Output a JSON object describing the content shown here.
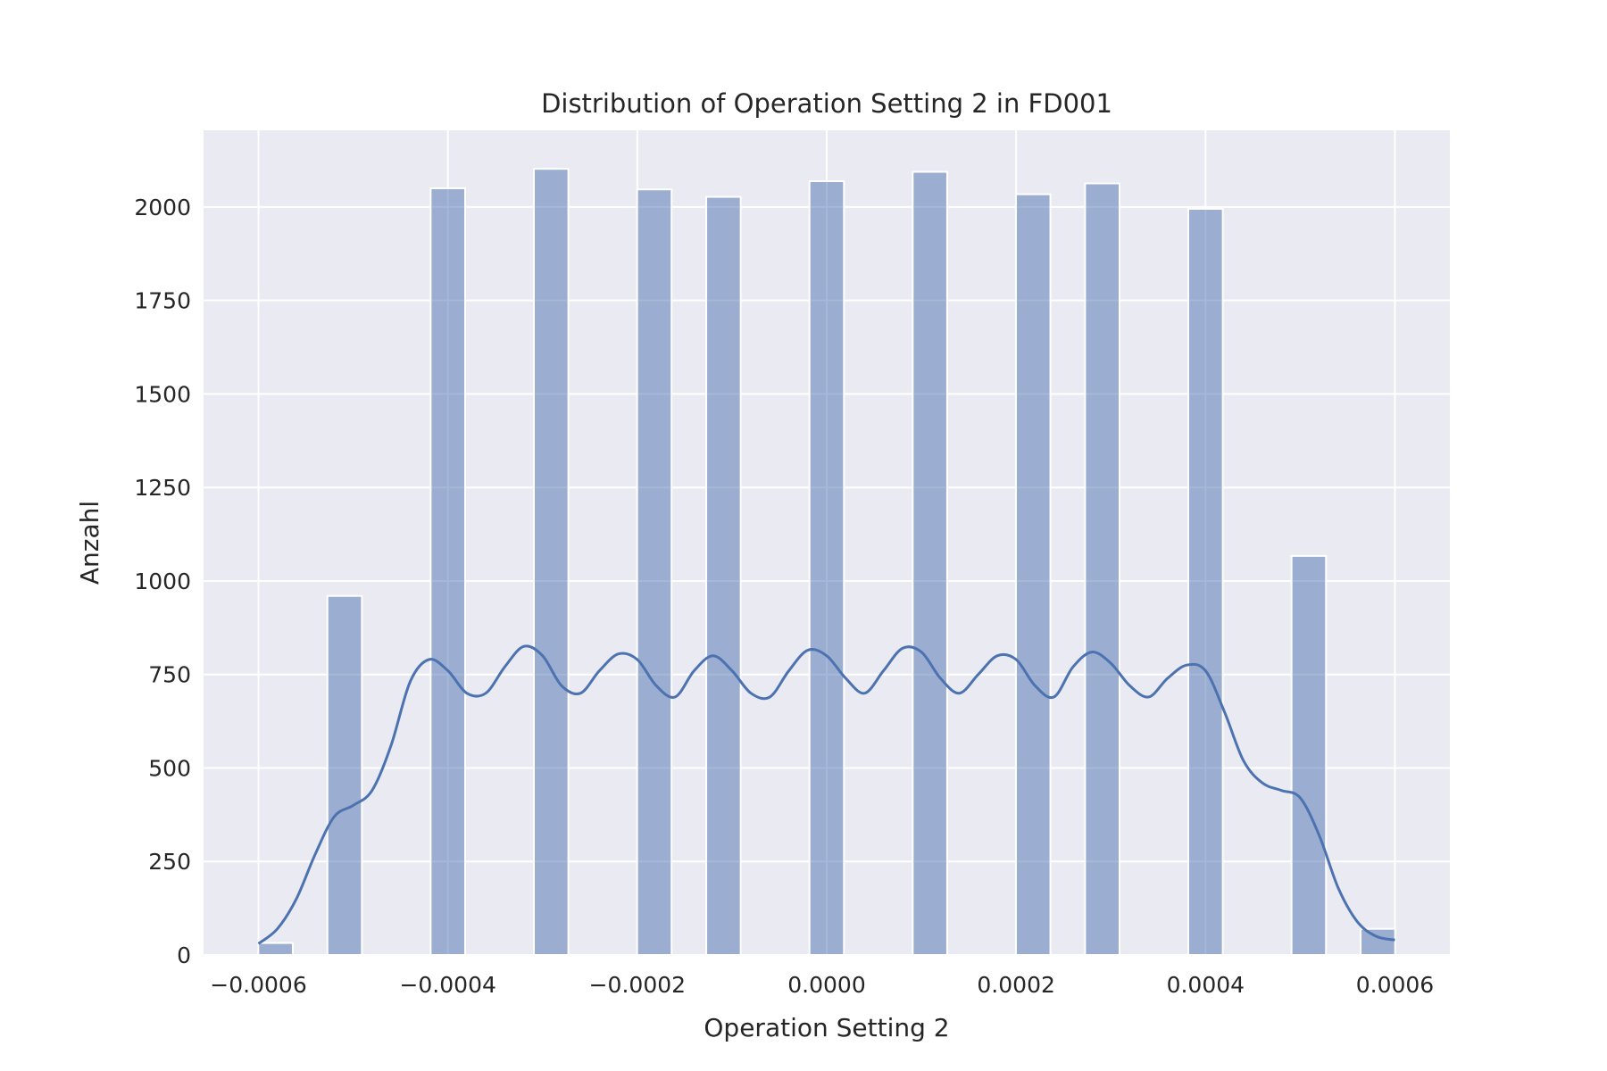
{
  "chart_data": {
    "type": "bar",
    "title": "Distribution of Operation Setting 2 in FD001",
    "xlabel": "Operation Setting 2",
    "ylabel": "Anzahl",
    "xlim": [
      -0.000658,
      0.000658
    ],
    "ylim": [
      0,
      2205
    ],
    "x_ticks": [
      -0.0006,
      -0.0004,
      -0.0002,
      0.0,
      0.0002,
      0.0004,
      0.0006
    ],
    "x_tick_labels": [
      "−0.0006",
      "−0.0004",
      "−0.0002",
      "0.0000",
      "0.0002",
      "0.0004",
      "0.0006"
    ],
    "y_ticks": [
      0,
      250,
      500,
      750,
      1000,
      1250,
      1500,
      1750,
      2000
    ],
    "y_tick_labels": [
      "0",
      "250",
      "500",
      "750",
      "1000",
      "1250",
      "1500",
      "1750",
      "2000"
    ],
    "grid": true,
    "bin_width": 3.64e-05,
    "bins": [
      {
        "x": -0.000582,
        "count": 32
      },
      {
        "x": -0.000509,
        "count": 960
      },
      {
        "x": -0.0004,
        "count": 2050
      },
      {
        "x": -0.000291,
        "count": 2102
      },
      {
        "x": -0.000182,
        "count": 2047
      },
      {
        "x": -0.000109,
        "count": 2027
      },
      {
        "x": 0.0,
        "count": 2069
      },
      {
        "x": 0.000109,
        "count": 2094
      },
      {
        "x": 0.000218,
        "count": 2034
      },
      {
        "x": 0.000291,
        "count": 2063
      },
      {
        "x": 0.0004,
        "count": 1995
      },
      {
        "x": 0.000509,
        "count": 1067
      },
      {
        "x": 0.000582,
        "count": 70
      }
    ],
    "kde": {
      "name": "",
      "x": [
        -0.0006,
        -0.00058,
        -0.00056,
        -0.00054,
        -0.00052,
        -0.0005,
        -0.00048,
        -0.00046,
        -0.00044,
        -0.00042,
        -0.0004,
        -0.00038,
        -0.00036,
        -0.00034,
        -0.00032,
        -0.0003,
        -0.00028,
        -0.00026,
        -0.00024,
        -0.00022,
        -0.0002,
        -0.00018,
        -0.00016,
        -0.00014,
        -0.00012,
        -0.0001,
        -8e-05,
        -6e-05,
        -4e-05,
        -2e-05,
        0.0,
        2e-05,
        4e-05,
        6e-05,
        8e-05,
        0.0001,
        0.00012,
        0.00014,
        0.00016,
        0.00018,
        0.0002,
        0.00022,
        0.00024,
        0.00026,
        0.00028,
        0.0003,
        0.00032,
        0.00034,
        0.00036,
        0.00038,
        0.0004,
        0.00042,
        0.00044,
        0.00046,
        0.00048,
        0.0005,
        0.00052,
        0.00054,
        0.00056,
        0.00058,
        0.0006
      ],
      "y": [
        30,
        70,
        150,
        270,
        370,
        400,
        440,
        560,
        730,
        790,
        760,
        700,
        700,
        770,
        825,
        800,
        720,
        700,
        760,
        805,
        790,
        720,
        690,
        760,
        800,
        760,
        700,
        690,
        760,
        815,
        800,
        740,
        700,
        760,
        820,
        810,
        740,
        700,
        750,
        800,
        790,
        720,
        690,
        770,
        810,
        780,
        720,
        690,
        740,
        775,
        760,
        650,
        520,
        460,
        440,
        420,
        320,
        180,
        90,
        50,
        40
      ]
    }
  }
}
